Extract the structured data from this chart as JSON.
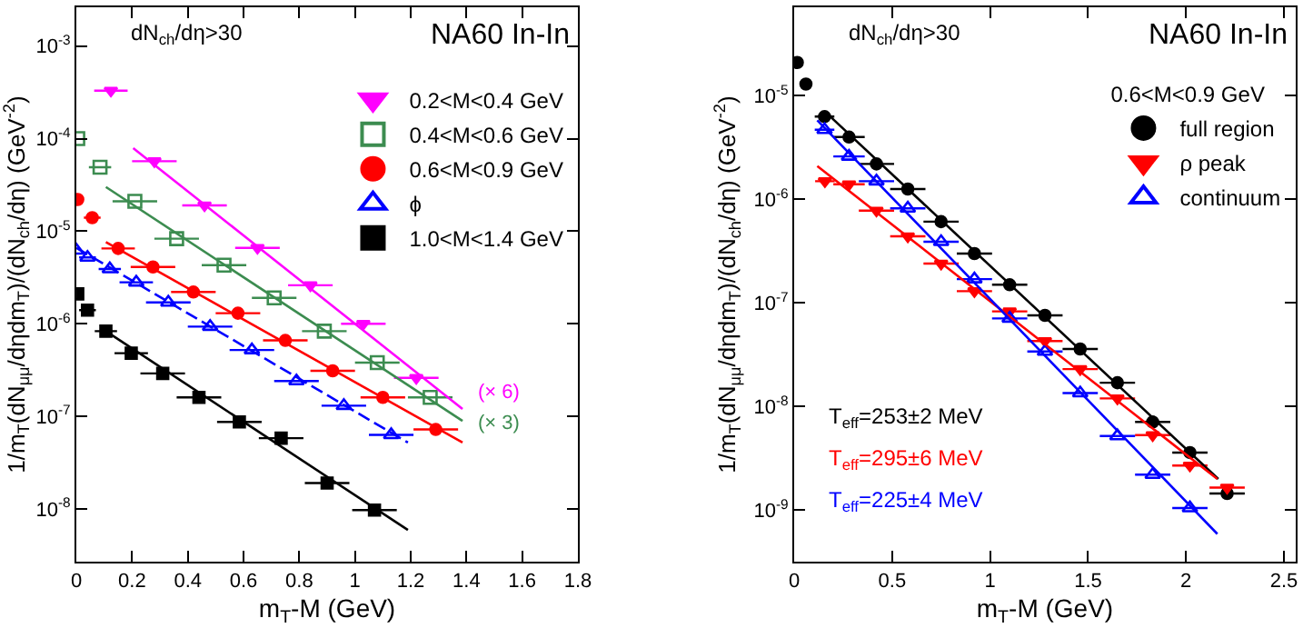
{
  "chart_data": [
    {
      "type": "scatter",
      "title": "NA60 In-In",
      "xlabel": "m$_{T}$-M (GeV)",
      "ylabel": "1/m$_{T}$(dN$_{μμ}$/dηdm$_{T}$)/(dN$_{ch}$/dη) (GeV$^{-2}$)",
      "log": "y",
      "legend": "top right",
      "xlim": [
        0,
        1.8
      ],
      "xticks": [
        0,
        0.2,
        0.4,
        0.6,
        0.8,
        1,
        1.2,
        1.4,
        1.6,
        1.8
      ],
      "ylim": [
        2.7e-09,
        0.0026
      ],
      "yticks": [
        {
          "value": 1e-08,
          "label": "10$^{-8}$"
        },
        {
          "value": 1e-07,
          "label": "10$^{-7}$"
        },
        {
          "value": 1e-06,
          "label": "10$^{-6}$"
        },
        {
          "value": 1e-05,
          "label": "10$^{-5}$"
        },
        {
          "value": 0.0001,
          "label": "10$^{-4}$"
        },
        {
          "value": 0.001,
          "label": "10$^{-3}$"
        }
      ],
      "annotations": [
        "dN$_{ch}$/dη>30",
        "(× 6)",
        "(× 3)"
      ],
      "series": [
        {
          "name": "0.2<M<0.4 GeV",
          "color": "#ff00ff",
          "marker": "triangle-down",
          "x": [
            0.124,
            0.28,
            0.46,
            0.65,
            0.84,
            1.03,
            1.22
          ],
          "values": [
            0.00033,
            5.7e-05,
            1.9e-05,
            6.6e-06,
            2.6e-06,
            1e-06,
            2.6e-07
          ],
          "xerrors": [
            0.06,
            0.08,
            0.08,
            0.08,
            0.08,
            0.08,
            0.08
          ]
        },
        {
          "name": "0.4<M<0.6 GeV",
          "color": "#3c8c50",
          "marker": "square-open",
          "x": [
            0.005,
            0.085,
            0.21,
            0.36,
            0.53,
            0.71,
            0.89,
            1.08,
            1.27
          ],
          "values": [
            0.0001,
            4.9e-05,
            2.1e-05,
            8.3e-06,
            4.3e-06,
            1.9e-06,
            8.3e-07,
            3.8e-07,
            1.6e-07
          ],
          "xerrors": [
            null,
            0.04,
            0.08,
            0.08,
            0.08,
            0.08,
            0.08,
            0.08,
            0.08
          ]
        },
        {
          "name": "0.6<M<0.9 GeV",
          "color": "#ff0000",
          "marker": "circle",
          "x": [
            0.005,
            0.057,
            0.15,
            0.275,
            0.42,
            0.58,
            0.75,
            0.92,
            1.1,
            1.29
          ],
          "values": [
            2.2e-05,
            1.4e-05,
            6.5e-06,
            4.1e-06,
            2.2e-06,
            1.3e-06,
            6.6e-07,
            3.1e-07,
            1.6e-07,
            7.2e-08
          ],
          "xerrors": [
            null,
            0.03,
            0.06,
            0.08,
            0.08,
            0.08,
            0.08,
            0.08,
            0.08,
            0.08
          ]
        },
        {
          "name": "ϕ",
          "color": "#0000ff",
          "marker": "triangle-open",
          "x": [
            0.0,
            0.04,
            0.12,
            0.215,
            0.33,
            0.48,
            0.63,
            0.79,
            0.96,
            1.13
          ],
          "values": [
            6.2e-06,
            5.2e-06,
            3.9e-06,
            2.8e-06,
            1.7e-06,
            9.3e-07,
            5.2e-07,
            2.4e-07,
            1.3e-07,
            6.3e-08
          ],
          "xerrors": [
            null,
            0.03,
            0.04,
            0.06,
            0.08,
            0.08,
            0.08,
            0.08,
            0.08,
            0.08
          ]
        },
        {
          "name": "1.0<M<1.4 GeV",
          "color": "#000000",
          "marker": "square",
          "x": [
            0.005,
            0.04,
            0.106,
            0.197,
            0.31,
            0.44,
            0.585,
            0.735,
            0.9,
            1.07
          ],
          "values": [
            2.1e-06,
            1.4e-06,
            8.3e-07,
            4.8e-07,
            2.9e-07,
            1.6e-07,
            8.7e-08,
            5.8e-08,
            1.9e-08,
            9.7e-09
          ],
          "xerrors": [
            null,
            0.03,
            0.04,
            0.06,
            0.08,
            0.08,
            0.08,
            0.08,
            0.08,
            0.08
          ]
        },
        {
          "type": "line",
          "color": "#ff00ff",
          "line_style": "solid",
          "x": [
            0.204,
            1.386
          ],
          "values": [
            7.9e-05,
            1.2e-07
          ]
        },
        {
          "type": "line",
          "color": "#3c8c50",
          "line_style": "solid",
          "x": [
            0.106,
            1.386
          ],
          "values": [
            3e-05,
            8.9e-08
          ]
        },
        {
          "type": "line",
          "color": "#ff0000",
          "line_style": "solid",
          "x": [
            0.106,
            1.386
          ],
          "values": [
            7.6e-06,
            5.2e-08
          ]
        },
        {
          "type": "line",
          "color": "#0000ff",
          "line_style": "dashed",
          "x": [
            0,
            1.19
          ],
          "values": [
            6.6e-06,
            5.2e-08
          ]
        },
        {
          "type": "line",
          "color": "#000000",
          "line_style": "solid",
          "x": [
            0.106,
            1.19
          ],
          "values": [
            8.3e-07,
            5.9e-09
          ]
        }
      ]
    },
    {
      "type": "scatter",
      "title": "NA60 In-In",
      "xlabel": "m$_{T}$-M (GeV)",
      "ylabel": "1/m$_{T}$(dN$_{μμ}$/dηdm$_{T}$)/(dN$_{ch}$/dη) (GeV$^{-2}$)",
      "log": "y",
      "legend": "top right",
      "legend_title": "0.6<M<0.9 GeV",
      "xlim": [
        0,
        2.56
      ],
      "xticks": [
        0,
        0.5,
        1,
        1.5,
        2,
        2.5
      ],
      "ylim": [
        3.2e-10,
        7.1e-05
      ],
      "yticks": [
        {
          "value": 1e-09,
          "label": "10$^{-9}$"
        },
        {
          "value": 1e-08,
          "label": "10$^{-8}$"
        },
        {
          "value": 1e-07,
          "label": "10$^{-7}$"
        },
        {
          "value": 1e-06,
          "label": "10$^{-6}$"
        },
        {
          "value": 1e-05,
          "label": "10$^{-5}$"
        }
      ],
      "annotations": [
        "dN$_{ch}$/dη>30",
        "T$_{eff}$=253±2 MeV",
        "T$_{eff}$=295±6 MeV",
        "T$_{eff}$=225±4 MeV"
      ],
      "series": [
        {
          "name": "full region",
          "color": "#000000",
          "marker": "circle",
          "x": [
            0.016,
            0.06,
            0.155,
            0.28,
            0.42,
            0.58,
            0.75,
            0.92,
            1.1,
            1.28,
            1.46,
            1.65,
            1.83,
            2.02,
            2.21
          ],
          "values": [
            2.1e-05,
            1.3e-05,
            6.3e-06,
            4e-06,
            2.2e-06,
            1.26e-06,
            6.1e-07,
            3e-07,
            1.5e-07,
            7.6e-08,
            3.6e-08,
            1.7e-08,
            7.1e-09,
            3.6e-09,
            1.45e-09
          ],
          "xerrors": [
            0.01,
            0.02,
            0.05,
            0.08,
            0.09,
            0.09,
            0.09,
            0.09,
            0.09,
            0.09,
            0.09,
            0.09,
            0.09,
            0.09,
            0.09
          ]
        },
        {
          "name": "ρ peak",
          "color": "#ff0000",
          "marker": "triangle-down",
          "x": [
            0.157,
            0.28,
            0.42,
            0.58,
            0.75,
            0.92,
            1.1,
            1.28,
            1.46,
            1.65,
            1.83,
            2.02,
            2.21
          ],
          "values": [
            1.5e-06,
            1.4e-06,
            7.8e-07,
            4.4e-07,
            2.4e-07,
            1.3e-07,
            8.3e-08,
            4.3e-08,
            2.3e-08,
            1.2e-08,
            5.3e-09,
            2.7e-09,
            1.65e-09
          ],
          "xerrors": [
            0.05,
            0.08,
            0.09,
            0.09,
            0.09,
            0.09,
            0.09,
            0.09,
            0.09,
            0.09,
            0.09,
            0.09,
            0.09
          ]
        },
        {
          "name": "continuum",
          "color": "#0000ff",
          "marker": "triangle-open",
          "x": [
            0.155,
            0.28,
            0.42,
            0.58,
            0.75,
            0.92,
            1.1,
            1.28,
            1.46,
            1.65,
            1.83,
            2.02
          ],
          "values": [
            4.7e-06,
            2.6e-06,
            1.5e-06,
            8.2e-07,
            3.9e-07,
            1.7e-07,
            7.1e-08,
            3.4e-08,
            1.35e-08,
            5.2e-09,
            2.2e-09,
            1.05e-09
          ],
          "xerrors": [
            0.05,
            0.08,
            0.09,
            0.09,
            0.09,
            0.09,
            0.09,
            0.09,
            0.09,
            0.09,
            0.09,
            0.09
          ]
        },
        {
          "type": "line",
          "color": "#000000",
          "line_style": "solid",
          "x": [
            0.155,
            2.165
          ],
          "values": [
            7.1e-06,
            2e-09
          ]
        },
        {
          "type": "line",
          "color": "#ff0000",
          "line_style": "solid",
          "x": [
            0.118,
            2.16
          ],
          "values": [
            2.1e-06,
            2e-09
          ]
        },
        {
          "type": "line",
          "color": "#0000ff",
          "line_style": "solid",
          "x": [
            0.118,
            2.16
          ],
          "values": [
            5.8e-06,
            5.9e-10
          ]
        }
      ]
    }
  ]
}
